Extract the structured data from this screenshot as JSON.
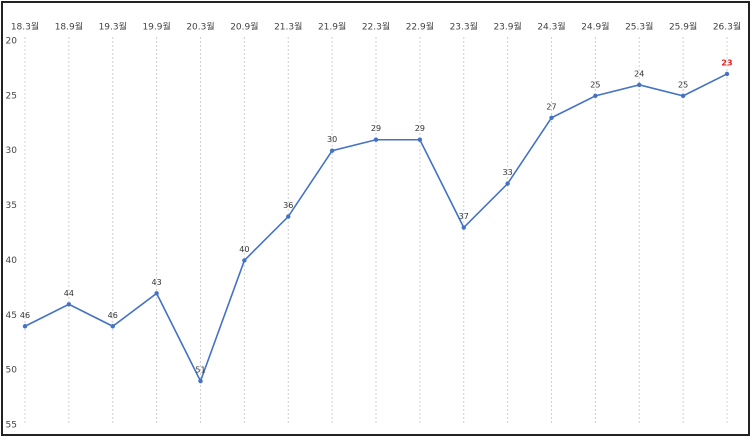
{
  "chart_data": {
    "type": "line",
    "categories": [
      "18.3월",
      "18.9월",
      "19.3월",
      "19.9월",
      "20.3월",
      "20.9월",
      "21.3월",
      "21.9월",
      "22.3월",
      "22.9월",
      "23.3월",
      "23.9월",
      "24.3월",
      "24.9월",
      "25.3월",
      "25.9월",
      "26.3월"
    ],
    "series": [
      {
        "color": "#4472c4",
        "values": [
          46,
          44,
          46,
          43,
          51,
          40,
          36,
          30,
          29,
          29,
          37,
          33,
          27,
          25,
          24,
          25,
          23
        ],
        "value_label_colors": [
          "#333333",
          "#333333",
          "#333333",
          "#333333",
          "#333333",
          "#333333",
          "#333333",
          "#333333",
          "#333333",
          "#333333",
          "#333333",
          "#333333",
          "#333333",
          "#333333",
          "#333333",
          "#333333",
          "#e02020"
        ]
      }
    ],
    "ylim": [
      20,
      55
    ],
    "y_inverted": true,
    "yticks": [
      20,
      25,
      30,
      35,
      40,
      45,
      50,
      55
    ],
    "x_grid": true,
    "x_axis_position": "top"
  }
}
